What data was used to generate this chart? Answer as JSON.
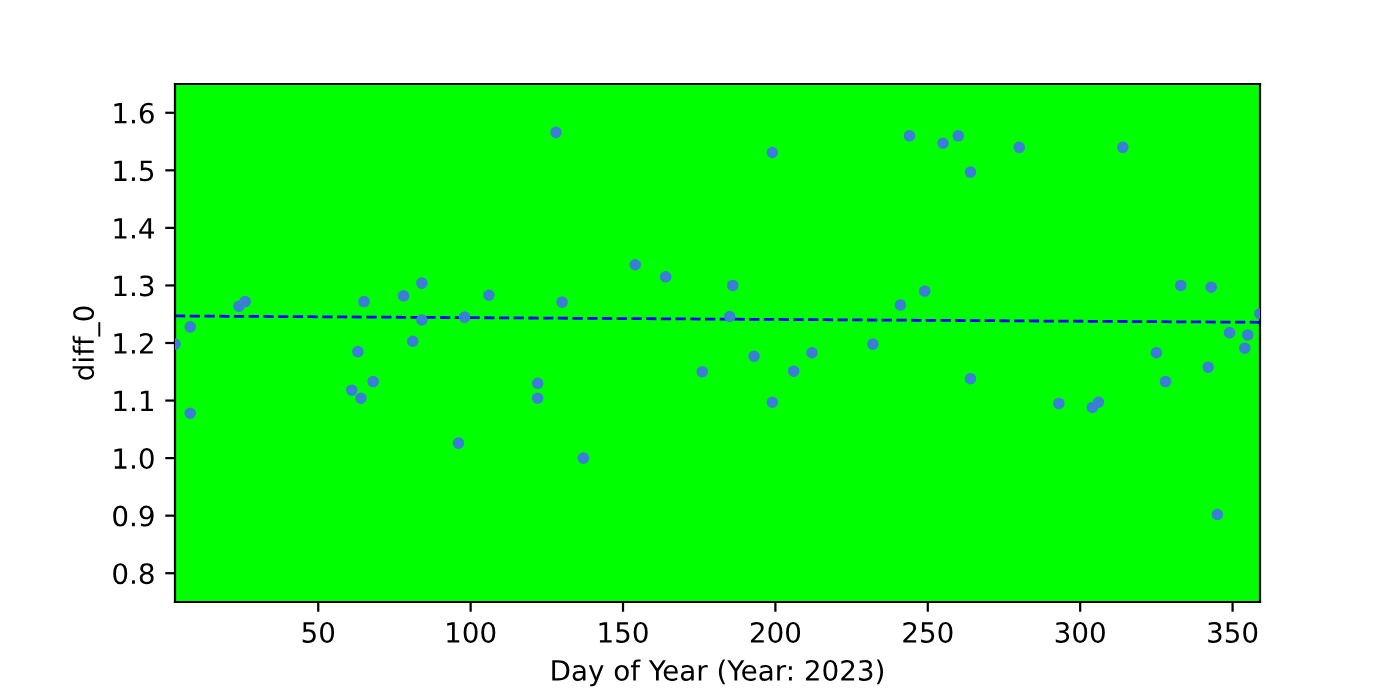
{
  "chart_data": {
    "type": "scatter",
    "xlabel": "Day of Year (Year: 2023)",
    "ylabel": "diff_0",
    "xlim": [
      3,
      359
    ],
    "ylim": [
      0.75,
      1.65
    ],
    "xticks": [
      50,
      100,
      150,
      200,
      250,
      300,
      350
    ],
    "yticks": [
      0.8,
      0.9,
      {
        "value": 1,
        "label": "1.0"
      },
      1.1,
      1.2,
      1.3,
      1.4,
      1.5,
      1.6
    ],
    "grid": false,
    "series": [
      {
        "marker": "circle",
        "color": "#3a7fd5",
        "x": [
          3,
          8,
          8,
          24,
          26,
          61,
          63,
          64,
          65,
          68,
          78,
          81,
          84,
          84,
          96,
          98,
          106,
          122,
          122,
          128,
          130,
          137,
          154,
          164,
          176,
          186,
          185,
          193,
          199,
          199,
          206,
          212,
          232,
          241,
          244,
          249,
          255,
          260,
          264,
          264,
          280,
          293,
          304,
          306,
          314,
          325,
          328,
          333,
          342,
          343,
          345,
          349,
          354,
          355,
          359
        ],
        "values": [
          1.198,
          1.228,
          1.078,
          1.264,
          1.272,
          1.118,
          1.185,
          1.104,
          1.272,
          1.133,
          1.282,
          1.203,
          1.304,
          1.24,
          1.026,
          1.245,
          1.283,
          1.13,
          1.104,
          1.566,
          1.271,
          1.0,
          1.336,
          1.315,
          1.15,
          1.3,
          1.246,
          1.177,
          1.097,
          1.531,
          1.151,
          1.183,
          1.198,
          1.266,
          1.56,
          1.29,
          1.547,
          1.56,
          1.497,
          1.138,
          1.54,
          1.095,
          1.088,
          1.097,
          1.54,
          1.183,
          1.133,
          1.3,
          1.158,
          1.297,
          0.902,
          1.218,
          1.191,
          1.214,
          1.251
        ]
      },
      {
        "type": "line",
        "marker": "none",
        "color": "#0000ff",
        "line_style": "dashed",
        "x": [
          3,
          359
        ],
        "values": [
          1.247,
          1.236
        ]
      }
    ]
  }
}
